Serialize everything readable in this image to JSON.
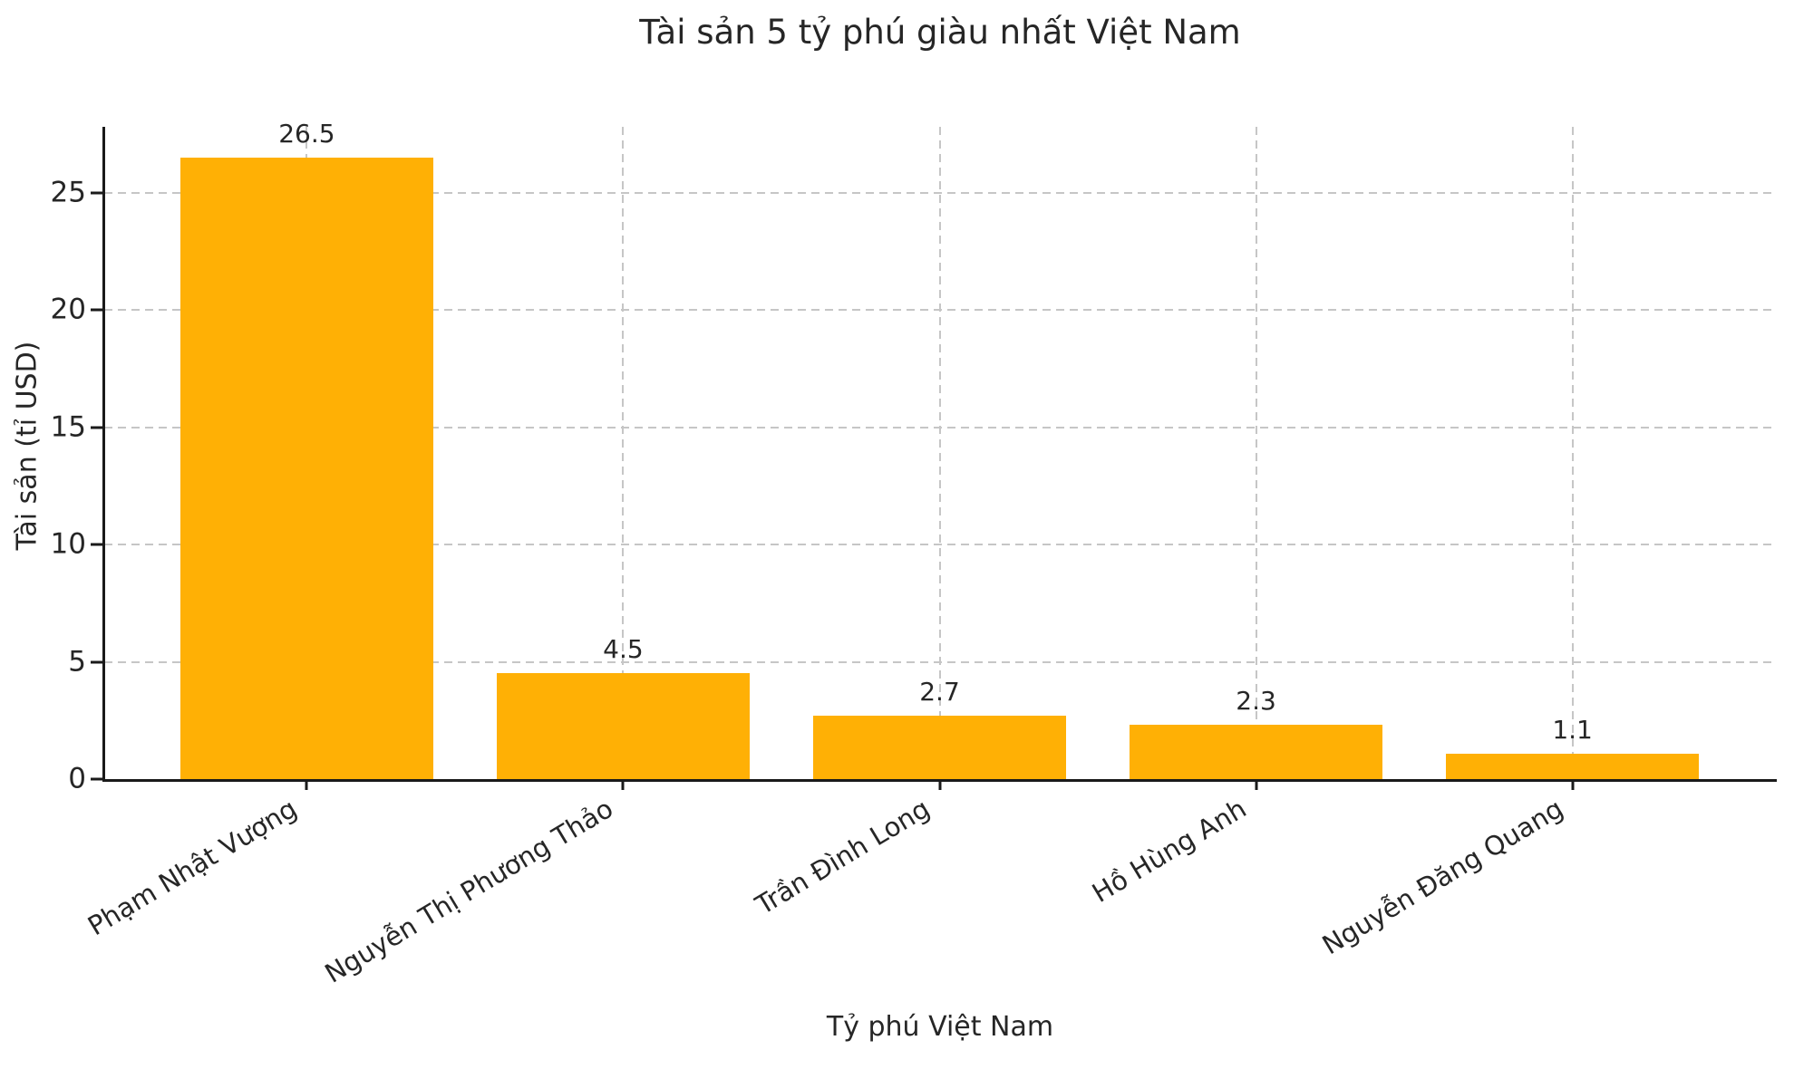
{
  "chart_data": {
    "type": "bar",
    "title": "Tài sản 5 tỷ phú giàu nhất Việt Nam",
    "xlabel": "Tỷ phú Việt Nam",
    "ylabel": "Tài sản (tỉ USD)",
    "categories": [
      "Phạm Nhật Vượng",
      "Nguyễn Thị Phương Thảo",
      "Trần Đình Long",
      "Hồ Hùng Anh",
      "Nguyễn Đăng Quang"
    ],
    "values": [
      26.5,
      4.5,
      2.7,
      2.3,
      1.1
    ],
    "value_labels": [
      "26.5",
      "4.5",
      "2.7",
      "2.3",
      "1.1"
    ],
    "yticks": [
      0,
      5,
      10,
      15,
      20,
      25
    ],
    "ytick_labels": [
      "0",
      "5",
      "10",
      "15",
      "20",
      "25"
    ],
    "ylim": [
      0,
      27.8
    ],
    "bar_width_ratio": 0.8,
    "bar_color": "#ffb005",
    "grid": {
      "visible": true,
      "style": "dashed",
      "color": "#c6c6c6",
      "axes": "both"
    },
    "spine_color": "#1a1a1a",
    "text_color": "#262626",
    "background_color": "#ffffff",
    "legend_position": "none",
    "xtick_rotation_deg": -31
  }
}
